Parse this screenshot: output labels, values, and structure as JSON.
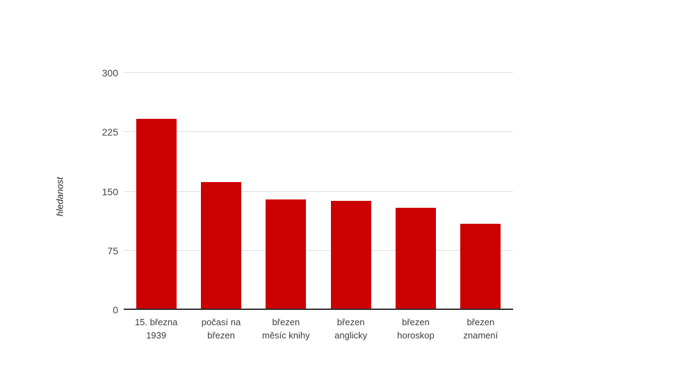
{
  "page": {
    "background": "#ffffff"
  },
  "chart_data": {
    "type": "bar",
    "title": "",
    "xlabel": "",
    "ylabel": "hledanost",
    "categories": [
      "15. března\n1939",
      "počasí na\nbřezen",
      "březen\nměsíc knihy",
      "březen\nanglicky",
      "březen\nhoroskop",
      "březen\nznamení"
    ],
    "values": [
      242,
      162,
      140,
      138,
      129,
      109
    ],
    "yticks": [
      0,
      75,
      150,
      225,
      300
    ],
    "ylim": [
      0,
      300
    ],
    "grid": true,
    "legend": "none",
    "bar_color": "#cc0000"
  },
  "colors": {
    "bar": "#cc0000",
    "gridline": "#e0e0e0",
    "axis_line": "#333333",
    "tick_text": "#444444",
    "label_text": "#3c3c3c"
  }
}
